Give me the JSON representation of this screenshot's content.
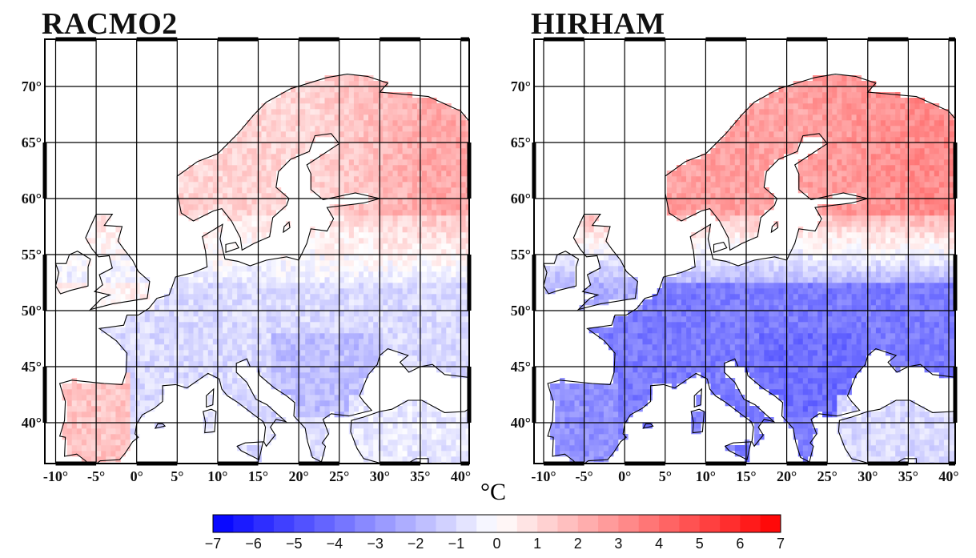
{
  "panels": [
    {
      "id": "left",
      "title": "RACMO2",
      "anomaly_pattern": {
        "north": 1.2,
        "northeast": 2.4,
        "central": -1.0,
        "balkans": -1.8,
        "iberia": 1.6,
        "uk": 0.3,
        "turkey": -0.6
      }
    },
    {
      "id": "right",
      "title": "HIRHAM",
      "anomaly_pattern": {
        "north": 2.6,
        "northeast": 3.2,
        "central": -3.6,
        "balkans": -4.0,
        "iberia": -3.0,
        "uk": -2.2,
        "turkey": -1.0
      }
    }
  ],
  "axes": {
    "lon_labels": [
      "-10°",
      "-5°",
      "0°",
      "5°",
      "10°",
      "15°",
      "20°",
      "25°",
      "30°",
      "35°",
      "40°"
    ],
    "lat_labels": [
      "70°",
      "65°",
      "60°",
      "55°",
      "50°",
      "45°",
      "40°"
    ]
  },
  "colorbar": {
    "unit": "°C",
    "min": -7,
    "max": 7,
    "tick_labels": [
      "−7",
      "−6",
      "−5",
      "−4",
      "−3",
      "−2",
      "−1",
      "0",
      "1",
      "2",
      "3",
      "4",
      "5",
      "6",
      "7"
    ],
    "cold_color": "#0000ff",
    "neutral_color": "#ffffff",
    "warm_color": "#ff0000"
  },
  "colors": {
    "land_outline": "#000000",
    "grid": "#000000",
    "frame": "#000000"
  }
}
